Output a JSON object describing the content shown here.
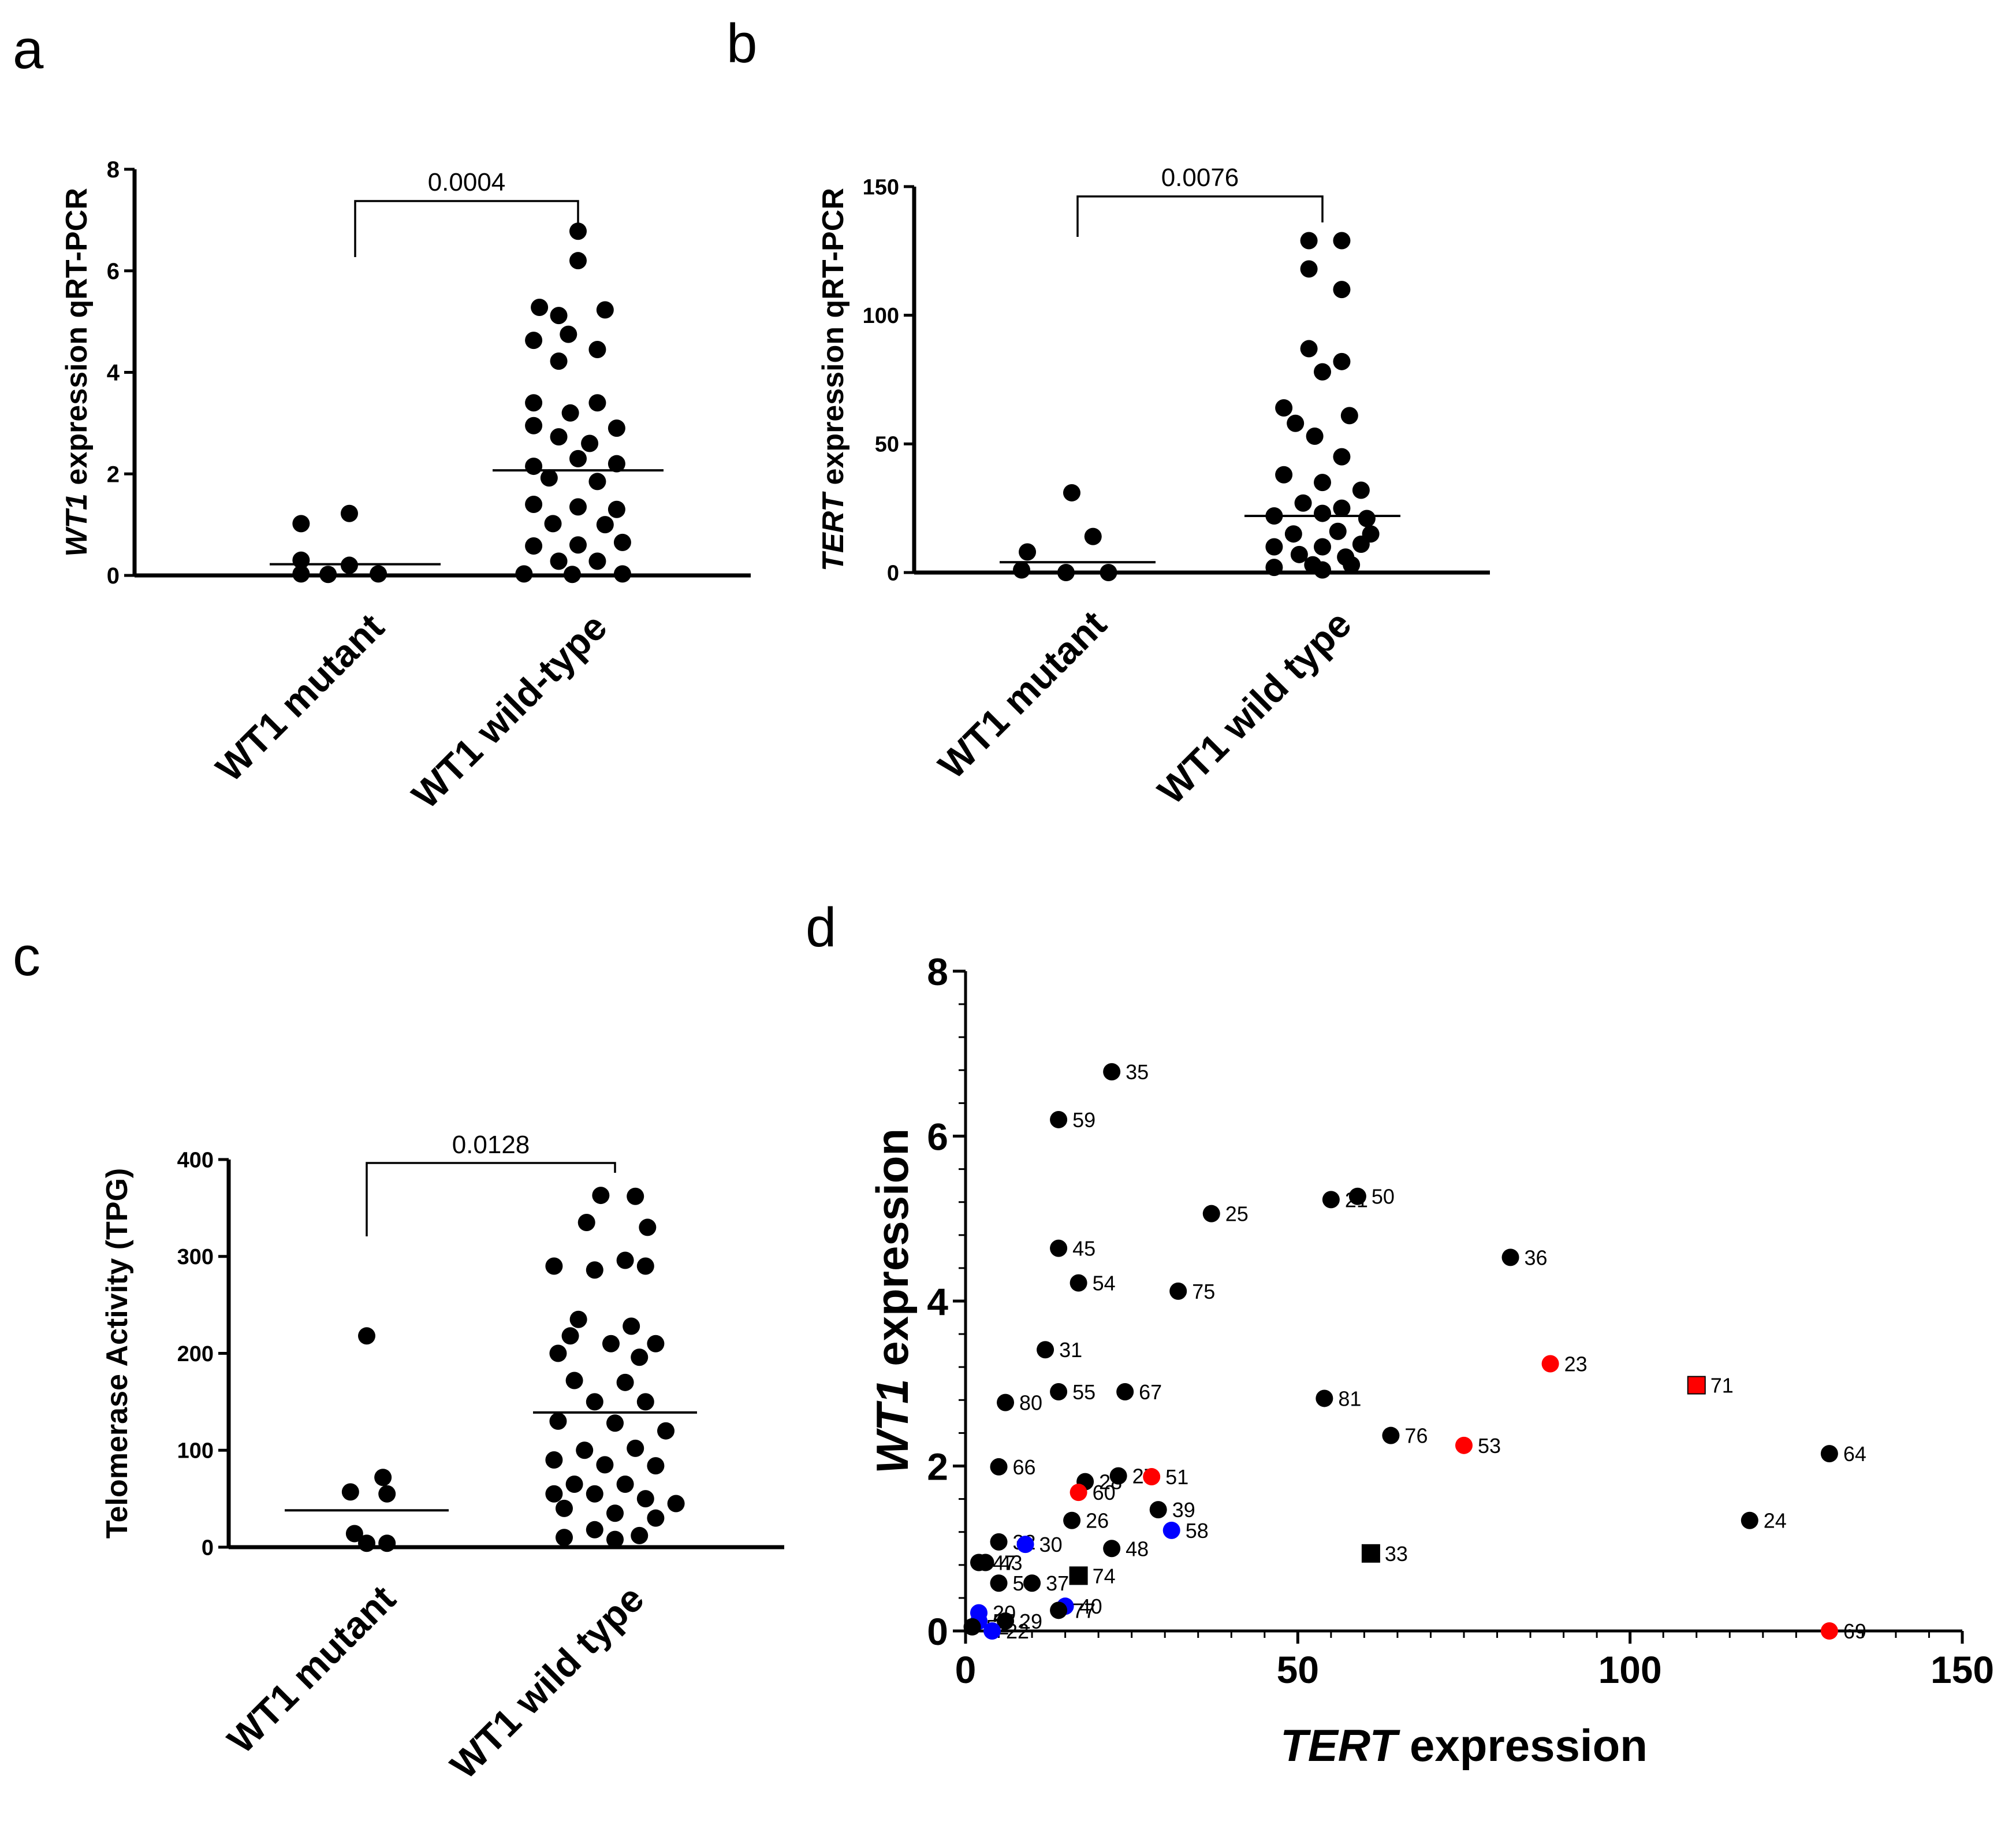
{
  "panels": {
    "a": "a",
    "b": "b",
    "c": "c",
    "d": "d"
  },
  "chart_data": [
    {
      "panel": "a",
      "type": "scatter",
      "ylabel_italic": "WT1",
      "ylabel_rest": " expression qRT-PCR",
      "ylim": [
        0,
        8
      ],
      "yticks": [
        0,
        2,
        4,
        6,
        8
      ],
      "groups": [
        "WT1 mutant",
        "WT1 wild-type"
      ],
      "pvalue": "0.0004",
      "medians": [
        0.22,
        2.07
      ],
      "points": [
        [
          [
            -0.28,
            1.02
          ],
          [
            -0.03,
            1.22
          ],
          [
            -0.28,
            0.3
          ],
          [
            -0.03,
            0.2
          ],
          [
            -0.28,
            0.03
          ],
          [
            -0.14,
            0.02
          ],
          [
            0.12,
            0.03
          ]
        ],
        [
          [
            0.0,
            6.78
          ],
          [
            0.0,
            6.2
          ],
          [
            -0.2,
            5.28
          ],
          [
            0.14,
            5.23
          ],
          [
            -0.1,
            5.12
          ],
          [
            -0.23,
            4.63
          ],
          [
            -0.05,
            4.75
          ],
          [
            0.1,
            4.45
          ],
          [
            -0.1,
            4.22
          ],
          [
            -0.23,
            3.4
          ],
          [
            0.1,
            3.4
          ],
          [
            -0.23,
            2.95
          ],
          [
            -0.04,
            3.2
          ],
          [
            0.2,
            2.9
          ],
          [
            -0.1,
            2.73
          ],
          [
            0.06,
            2.6
          ],
          [
            -0.23,
            2.15
          ],
          [
            0.0,
            2.3
          ],
          [
            0.2,
            2.2
          ],
          [
            -0.15,
            1.92
          ],
          [
            0.1,
            1.85
          ],
          [
            -0.23,
            1.4
          ],
          [
            0.0,
            1.35
          ],
          [
            0.2,
            1.3
          ],
          [
            -0.13,
            1.02
          ],
          [
            0.14,
            1.0
          ],
          [
            -0.23,
            0.58
          ],
          [
            0.0,
            0.6
          ],
          [
            0.23,
            0.65
          ],
          [
            -0.1,
            0.28
          ],
          [
            0.1,
            0.28
          ],
          [
            -0.28,
            0.03
          ],
          [
            -0.03,
            0.02
          ],
          [
            0.23,
            0.03
          ]
        ]
      ]
    },
    {
      "panel": "b",
      "type": "scatter",
      "ylabel_italic": "TERT",
      "ylabel_rest": " expression qRT-PCR",
      "ylim": [
        0,
        150
      ],
      "yticks": [
        0,
        50,
        100,
        150
      ],
      "groups": [
        "WT1 mutant",
        "WT1 wild type"
      ],
      "pvalue": "0.0076",
      "medians": [
        4,
        22
      ],
      "points": [
        [
          [
            -0.03,
            31
          ],
          [
            -0.26,
            8
          ],
          [
            0.08,
            14
          ],
          [
            -0.29,
            1
          ],
          [
            -0.06,
            0
          ],
          [
            0.16,
            0
          ]
        ],
        [
          [
            -0.07,
            129
          ],
          [
            0.1,
            129
          ],
          [
            -0.07,
            118
          ],
          [
            0.1,
            110
          ],
          [
            -0.07,
            87
          ],
          [
            0.1,
            82
          ],
          [
            0.0,
            78
          ],
          [
            -0.2,
            64
          ],
          [
            0.14,
            61
          ],
          [
            -0.14,
            58
          ],
          [
            -0.04,
            53
          ],
          [
            0.1,
            45
          ],
          [
            -0.2,
            38
          ],
          [
            0.0,
            35
          ],
          [
            0.2,
            32
          ],
          [
            -0.1,
            27
          ],
          [
            0.1,
            25
          ],
          [
            -0.25,
            22
          ],
          [
            0.0,
            23
          ],
          [
            0.23,
            21
          ],
          [
            -0.15,
            15
          ],
          [
            0.08,
            16
          ],
          [
            0.25,
            15
          ],
          [
            -0.25,
            10
          ],
          [
            0.0,
            10
          ],
          [
            0.2,
            11
          ],
          [
            -0.12,
            7
          ],
          [
            0.12,
            6
          ],
          [
            -0.25,
            2
          ],
          [
            -0.05,
            3
          ],
          [
            0.15,
            3
          ],
          [
            0.0,
            1
          ]
        ]
      ]
    },
    {
      "panel": "c",
      "type": "scatter",
      "ylabel": "Telomerase Activity (TPG)",
      "ylim": [
        0,
        400
      ],
      "yticks": [
        0,
        100,
        200,
        300,
        400
      ],
      "groups": [
        "WT1 mutant",
        "WT1 wild type"
      ],
      "pvalue": "0.0128",
      "medians": [
        38,
        139
      ],
      "points": [
        [
          [
            0.0,
            218
          ],
          [
            0.08,
            72
          ],
          [
            -0.08,
            57
          ],
          [
            0.1,
            55
          ],
          [
            -0.06,
            14
          ],
          [
            0.0,
            4
          ],
          [
            0.1,
            4
          ]
        ],
        [
          [
            -0.07,
            363
          ],
          [
            0.1,
            362
          ],
          [
            -0.14,
            335
          ],
          [
            0.16,
            330
          ],
          [
            -0.3,
            290
          ],
          [
            -0.1,
            286
          ],
          [
            0.15,
            290
          ],
          [
            0.05,
            296
          ],
          [
            -0.18,
            235
          ],
          [
            0.08,
            228
          ],
          [
            -0.22,
            218
          ],
          [
            -0.02,
            210
          ],
          [
            0.2,
            210
          ],
          [
            -0.28,
            200
          ],
          [
            0.12,
            196
          ],
          [
            -0.2,
            172
          ],
          [
            0.05,
            170
          ],
          [
            -0.1,
            150
          ],
          [
            0.15,
            150
          ],
          [
            -0.28,
            130
          ],
          [
            0.0,
            128
          ],
          [
            0.25,
            120
          ],
          [
            -0.15,
            100
          ],
          [
            0.1,
            102
          ],
          [
            -0.3,
            90
          ],
          [
            -0.05,
            85
          ],
          [
            0.2,
            84
          ],
          [
            -0.2,
            65
          ],
          [
            0.05,
            65
          ],
          [
            -0.3,
            55
          ],
          [
            -0.1,
            55
          ],
          [
            0.15,
            50
          ],
          [
            0.3,
            45
          ],
          [
            -0.25,
            40
          ],
          [
            0.0,
            35
          ],
          [
            0.2,
            30
          ],
          [
            -0.1,
            18
          ],
          [
            0.12,
            12
          ],
          [
            -0.25,
            10
          ],
          [
            0.0,
            8
          ]
        ]
      ]
    },
    {
      "panel": "d",
      "type": "scatter",
      "xlabel_italic": "TERT",
      "xlabel_rest": " expression",
      "ylabel_italic": "WT1",
      "ylabel_rest": " expression",
      "xlim": [
        0,
        150
      ],
      "ylim": [
        0,
        8
      ],
      "xticks": [
        0,
        50,
        100,
        150
      ],
      "yticks": [
        0,
        2,
        4,
        6,
        8
      ],
      "colors": {
        "black": "#000000",
        "red": "#ff0000",
        "blue": "#0000ff"
      },
      "points": [
        {
          "label": "35",
          "x": 22,
          "y": 6.78,
          "color": "black",
          "shape": "circle"
        },
        {
          "label": "59",
          "x": 14,
          "y": 6.2,
          "color": "black",
          "shape": "circle"
        },
        {
          "label": "21",
          "x": 55,
          "y": 5.23,
          "color": "black",
          "shape": "circle"
        },
        {
          "label": "50",
          "x": 59,
          "y": 5.27,
          "color": "black",
          "shape": "circle"
        },
        {
          "label": "25",
          "x": 37,
          "y": 5.06,
          "color": "black",
          "shape": "circle"
        },
        {
          "label": "45",
          "x": 14,
          "y": 4.64,
          "color": "black",
          "shape": "circle"
        },
        {
          "label": "36",
          "x": 82,
          "y": 4.53,
          "color": "black",
          "shape": "circle"
        },
        {
          "label": "54",
          "x": 17,
          "y": 4.22,
          "color": "black",
          "shape": "circle"
        },
        {
          "label": "75",
          "x": 32,
          "y": 4.12,
          "color": "black",
          "shape": "circle"
        },
        {
          "label": "31",
          "x": 12,
          "y": 3.41,
          "color": "black",
          "shape": "circle"
        },
        {
          "label": "23",
          "x": 88,
          "y": 3.24,
          "color": "red",
          "shape": "circle"
        },
        {
          "label": "71",
          "x": 110,
          "y": 2.98,
          "color": "red",
          "shape": "square"
        },
        {
          "label": "55",
          "x": 14,
          "y": 2.9,
          "color": "black",
          "shape": "circle"
        },
        {
          "label": "67",
          "x": 24,
          "y": 2.9,
          "color": "black",
          "shape": "circle"
        },
        {
          "label": "81",
          "x": 54,
          "y": 2.82,
          "color": "black",
          "shape": "circle"
        },
        {
          "label": "80",
          "x": 6,
          "y": 2.77,
          "color": "black",
          "shape": "circle"
        },
        {
          "label": "76",
          "x": 64,
          "y": 2.37,
          "color": "black",
          "shape": "circle"
        },
        {
          "label": "53",
          "x": 75,
          "y": 2.25,
          "color": "red",
          "shape": "circle"
        },
        {
          "label": "64",
          "x": 130,
          "y": 2.15,
          "color": "black",
          "shape": "circle"
        },
        {
          "label": "66",
          "x": 5,
          "y": 1.99,
          "color": "black",
          "shape": "circle"
        },
        {
          "label": "28",
          "x": 18,
          "y": 1.81,
          "color": "black",
          "shape": "circle"
        },
        {
          "label": "27",
          "x": 23,
          "y": 1.88,
          "color": "black",
          "shape": "circle"
        },
        {
          "label": "51",
          "x": 28,
          "y": 1.87,
          "color": "red",
          "shape": "circle"
        },
        {
          "label": "60",
          "x": 17,
          "y": 1.68,
          "color": "red",
          "shape": "circle"
        },
        {
          "label": "39",
          "x": 29,
          "y": 1.47,
          "color": "black",
          "shape": "circle"
        },
        {
          "label": "24",
          "x": 118,
          "y": 1.34,
          "color": "black",
          "shape": "circle"
        },
        {
          "label": "26",
          "x": 16,
          "y": 1.34,
          "color": "black",
          "shape": "circle"
        },
        {
          "label": "58",
          "x": 31,
          "y": 1.22,
          "color": "blue",
          "shape": "circle"
        },
        {
          "label": "32",
          "x": 5,
          "y": 1.08,
          "color": "black",
          "shape": "circle"
        },
        {
          "label": "30",
          "x": 9,
          "y": 1.05,
          "color": "blue",
          "shape": "circle"
        },
        {
          "label": "48",
          "x": 22,
          "y": 1.0,
          "color": "black",
          "shape": "circle"
        },
        {
          "label": "33",
          "x": 61,
          "y": 0.94,
          "color": "black",
          "shape": "square"
        },
        {
          "label": "47",
          "x": 2,
          "y": 0.83,
          "color": "black",
          "shape": "circle"
        },
        {
          "label": "43",
          "x": 3,
          "y": 0.83,
          "color": "black",
          "shape": "circle"
        },
        {
          "label": "74",
          "x": 17,
          "y": 0.67,
          "color": "black",
          "shape": "square"
        },
        {
          "label": "56",
          "x": 5,
          "y": 0.58,
          "color": "black",
          "shape": "circle"
        },
        {
          "label": "37",
          "x": 10,
          "y": 0.58,
          "color": "black",
          "shape": "circle"
        },
        {
          "label": "40",
          "x": 15,
          "y": 0.3,
          "color": "blue",
          "shape": "circle"
        },
        {
          "label": "77",
          "x": 14,
          "y": 0.25,
          "color": "black",
          "shape": "circle"
        },
        {
          "label": "20",
          "x": 2,
          "y": 0.22,
          "color": "blue",
          "shape": "circle"
        },
        {
          "label": "57",
          "x": 2,
          "y": 0.12,
          "color": "blue",
          "shape": "circle"
        },
        {
          "label": "29",
          "x": 6,
          "y": 0.12,
          "color": "black",
          "shape": "circle"
        },
        {
          "label": "52",
          "x": 1,
          "y": 0.05,
          "color": "black",
          "shape": "circle"
        },
        {
          "label": "22",
          "x": 4,
          "y": 0.0,
          "color": "blue",
          "shape": "circle"
        },
        {
          "label": "69",
          "x": 130,
          "y": 0.0,
          "color": "red",
          "shape": "circle"
        }
      ]
    }
  ]
}
